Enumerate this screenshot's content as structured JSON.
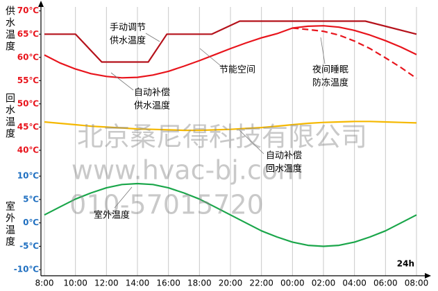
{
  "chart_data": {
    "type": "line",
    "x": [
      8,
      9,
      10,
      11,
      12,
      13,
      14,
      15,
      16,
      17,
      18,
      19,
      20,
      21,
      22,
      23,
      24,
      25,
      26,
      27,
      28,
      29,
      30,
      31,
      32
    ],
    "xlim": [
      8,
      32
    ],
    "xticks": [
      {
        "value": 8,
        "label": "8:00"
      },
      {
        "value": 10,
        "label": "10:00"
      },
      {
        "value": 12,
        "label": "12:00"
      },
      {
        "value": 14,
        "label": "14:00"
      },
      {
        "value": 16,
        "label": "16:00"
      },
      {
        "value": 18,
        "label": "18:00"
      },
      {
        "value": 20,
        "label": "20:00"
      },
      {
        "value": 22,
        "label": "22:00"
      },
      {
        "value": 24,
        "label": "00:00"
      },
      {
        "value": 26,
        "label": "02:00"
      },
      {
        "value": 28,
        "label": "04:00"
      },
      {
        "value": 30,
        "label": "06:00"
      },
      {
        "value": 32,
        "label": "08:00"
      }
    ],
    "x_axis_label": "24h",
    "ylim": [
      13,
      71.6
    ],
    "yticks": [
      {
        "value": 70,
        "label": "70℃"
      },
      {
        "value": 65,
        "label": "65℃"
      },
      {
        "value": 60,
        "label": "60℃"
      },
      {
        "value": 55,
        "label": "55℃"
      },
      {
        "value": 50,
        "label": "50℃"
      },
      {
        "value": 45,
        "label": "45℃"
      },
      {
        "value": 40,
        "label": "40℃"
      }
    ],
    "ytick_color": "#e8141c",
    "y2lim": [
      -11.3,
      46.9
    ],
    "y2ticks": [
      {
        "value": 10,
        "label": "10℃"
      },
      {
        "value": 5,
        "label": "5℃"
      },
      {
        "value": 0,
        "label": "0℃"
      },
      {
        "value": -5,
        "label": "-5℃"
      },
      {
        "value": -10,
        "label": "-10℃"
      }
    ],
    "y2tick_color": "#1f6fc0",
    "axis_titles": [
      "供水温度",
      "回水温度",
      "室外温度"
    ],
    "grid": true,
    "series": [
      {
        "color": "#b5121b",
        "x": [
          8,
          10,
          11.7,
          14.7,
          15.9,
          18.8,
          20.6,
          28.7,
          32
        ],
        "values": [
          65,
          65,
          59,
          59,
          65,
          65,
          67.8,
          67.8,
          65
        ]
      },
      {
        "color": "#e8141c",
        "values": [
          60.5,
          58.8,
          57.5,
          56.5,
          55.9,
          55.6,
          55.7,
          56.2,
          57.0,
          58.1,
          59.3,
          60.6,
          61.9,
          63.1,
          64.2,
          65.1,
          66.3,
          66.7,
          66.8,
          66.5,
          65.8,
          64.8,
          63.6,
          62.2,
          60.6
        ]
      },
      {
        "color": "#e8141c",
        "dash": true,
        "values": [
          null,
          null,
          null,
          null,
          null,
          null,
          null,
          null,
          null,
          null,
          null,
          null,
          null,
          null,
          null,
          null,
          66.3,
          66.0,
          65.6,
          64.8,
          63.5,
          61.9,
          59.9,
          57.8,
          55.5
        ]
      },
      {
        "color": "#f5b800",
        "values": [
          46.1,
          45.8,
          45.5,
          45.2,
          45.0,
          44.8,
          44.6,
          44.5,
          44.4,
          44.3,
          44.3,
          44.4,
          44.5,
          44.7,
          44.9,
          45.2,
          45.5,
          45.8,
          46.0,
          46.1,
          46.2,
          46.2,
          46.1,
          46.0,
          45.9
        ]
      },
      {
        "color": "#1aa64a",
        "axis": "y2",
        "values": [
          1.7,
          3.4,
          5.1,
          6.4,
          7.5,
          8.2,
          8.4,
          8.2,
          7.5,
          6.4,
          5.1,
          3.4,
          1.7,
          0.0,
          -1.7,
          -3.0,
          -4.1,
          -4.8,
          -5.0,
          -4.8,
          -4.1,
          -3.0,
          -1.7,
          0.0,
          1.7
        ]
      }
    ],
    "annotations": [
      {
        "lines": [
          "手动调节",
          "供水温度"
        ]
      },
      {
        "lines": [
          "节能空间"
        ]
      },
      {
        "lines": [
          "夜间睡眠",
          "防冻温度"
        ]
      },
      {
        "lines": [
          "自动补偿",
          "供水温度"
        ]
      },
      {
        "lines": [
          "自动补偿",
          "回水温度"
        ]
      },
      {
        "lines": [
          "室外温度"
        ]
      }
    ],
    "watermark": [
      "北京桑尼得科技有限公司",
      "www.hvac-bj.com",
      "010-57015720"
    ]
  }
}
